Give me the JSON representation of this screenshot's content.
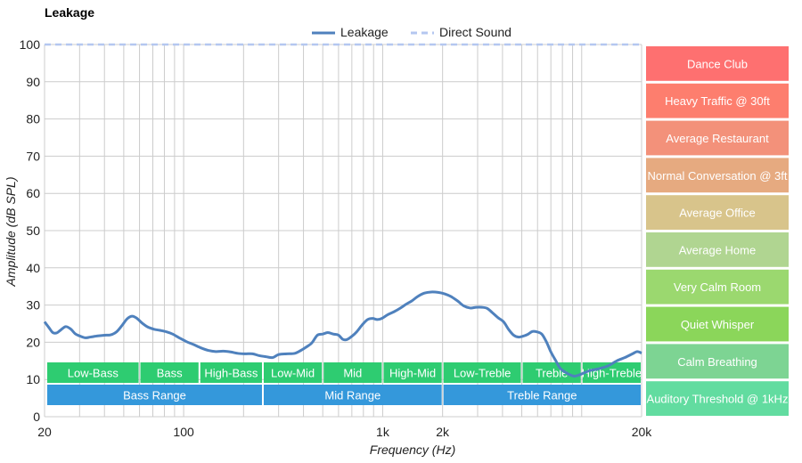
{
  "chart_data": {
    "type": "line",
    "title": "Leakage",
    "xlabel": "Frequency (Hz)",
    "ylabel": "Amplitude (dB SPL)",
    "x_scale": "log",
    "xlim": [
      20,
      20000
    ],
    "ylim": [
      0,
      100
    ],
    "grid": true,
    "legend_position": "top-center",
    "x_ticks": [
      {
        "value": 20,
        "label": "20"
      },
      {
        "value": 100,
        "label": "100"
      },
      {
        "value": 1000,
        "label": "1k"
      },
      {
        "value": 2000,
        "label": "2k"
      },
      {
        "value": 20000,
        "label": "20k"
      }
    ],
    "x_grid": [
      20,
      30,
      40,
      50,
      60,
      70,
      80,
      90,
      100,
      200,
      300,
      400,
      500,
      600,
      700,
      800,
      900,
      1000,
      2000,
      3000,
      4000,
      5000,
      6000,
      7000,
      8000,
      9000,
      10000,
      20000
    ],
    "y_ticks": [
      0,
      10,
      20,
      30,
      40,
      50,
      60,
      70,
      80,
      90,
      100
    ],
    "series": [
      {
        "name": "Leakage",
        "color": "#4f81bd",
        "style": "solid",
        "points": [
          [
            20,
            25.5
          ],
          [
            21,
            24
          ],
          [
            22,
            22.6
          ],
          [
            23,
            22.5
          ],
          [
            24,
            23.2
          ],
          [
            25.5,
            24.2
          ],
          [
            27,
            23.6
          ],
          [
            28.5,
            22.3
          ],
          [
            30,
            21.7
          ],
          [
            32,
            21.2
          ],
          [
            34,
            21.4
          ],
          [
            37,
            21.7
          ],
          [
            40,
            21.9
          ],
          [
            43,
            22
          ],
          [
            46,
            22.8
          ],
          [
            49,
            24.5
          ],
          [
            52,
            26.3
          ],
          [
            55,
            27
          ],
          [
            58,
            26.5
          ],
          [
            62,
            25.1
          ],
          [
            66,
            24.1
          ],
          [
            71,
            23.5
          ],
          [
            76,
            23.2
          ],
          [
            82,
            22.8
          ],
          [
            88,
            22.2
          ],
          [
            95,
            21.2
          ],
          [
            103,
            20.2
          ],
          [
            112,
            19.4
          ],
          [
            122,
            18.5
          ],
          [
            133,
            17.8
          ],
          [
            145,
            17.5
          ],
          [
            158,
            17.6
          ],
          [
            172,
            17.4
          ],
          [
            188,
            17.0
          ],
          [
            205,
            16.9
          ],
          [
            222,
            16.9
          ],
          [
            240,
            16.4
          ],
          [
            260,
            16.1
          ],
          [
            280,
            15.9
          ],
          [
            300,
            16.7
          ],
          [
            330,
            16.9
          ],
          [
            360,
            17.0
          ],
          [
            385,
            17.7
          ],
          [
            410,
            18.6
          ],
          [
            440,
            19.8
          ],
          [
            470,
            21.9
          ],
          [
            500,
            22.2
          ],
          [
            530,
            22.6
          ],
          [
            565,
            22.2
          ],
          [
            600,
            21.9
          ],
          [
            630,
            20.8
          ],
          [
            660,
            20.7
          ],
          [
            700,
            21.6
          ],
          [
            740,
            22.8
          ],
          [
            790,
            24.7
          ],
          [
            840,
            26.1
          ],
          [
            890,
            26.4
          ],
          [
            940,
            26.1
          ],
          [
            990,
            26.4
          ],
          [
            1060,
            27.4
          ],
          [
            1140,
            28.2
          ],
          [
            1220,
            29.1
          ],
          [
            1310,
            30.2
          ],
          [
            1400,
            31.1
          ],
          [
            1500,
            32.3
          ],
          [
            1620,
            33.2
          ],
          [
            1750,
            33.5
          ],
          [
            1900,
            33.4
          ],
          [
            2050,
            33.0
          ],
          [
            2200,
            32.3
          ],
          [
            2380,
            31.1
          ],
          [
            2550,
            29.8
          ],
          [
            2750,
            29.2
          ],
          [
            2950,
            29.4
          ],
          [
            3150,
            29.4
          ],
          [
            3350,
            29.1
          ],
          [
            3550,
            28.0
          ],
          [
            3800,
            26.6
          ],
          [
            4050,
            25.5
          ],
          [
            4300,
            23.4
          ],
          [
            4550,
            21.9
          ],
          [
            4800,
            21.4
          ],
          [
            5050,
            21.6
          ],
          [
            5350,
            22.1
          ],
          [
            5650,
            22.9
          ],
          [
            5950,
            22.8
          ],
          [
            6300,
            22.2
          ],
          [
            6650,
            20.1
          ],
          [
            7000,
            17.4
          ],
          [
            7400,
            15.1
          ],
          [
            7800,
            13.0
          ],
          [
            8250,
            12.0
          ],
          [
            8700,
            11.3
          ],
          [
            9200,
            10.9
          ],
          [
            9700,
            11.2
          ],
          [
            10300,
            11.8
          ],
          [
            11000,
            12.4
          ],
          [
            12000,
            12.8
          ],
          [
            13500,
            13.6
          ],
          [
            15000,
            15.0
          ],
          [
            16500,
            15.9
          ],
          [
            18000,
            16.9
          ],
          [
            19000,
            17.5
          ],
          [
            20000,
            17.1
          ]
        ]
      },
      {
        "name": "Direct Sound",
        "color": "#b4c7f0",
        "style": "dashed",
        "points": [
          [
            20,
            100
          ],
          [
            20000,
            100
          ]
        ]
      }
    ],
    "frequency_bands": [
      {
        "label": "Low-Bass",
        "from": 20,
        "to": 60,
        "row": 1,
        "color": "#2ecc71"
      },
      {
        "label": "Bass",
        "from": 60,
        "to": 120,
        "row": 1,
        "color": "#2ecc71"
      },
      {
        "label": "High-Bass",
        "from": 120,
        "to": 250,
        "row": 1,
        "color": "#2ecc71"
      },
      {
        "label": "Low-Mid",
        "from": 250,
        "to": 500,
        "row": 1,
        "color": "#2ecc71"
      },
      {
        "label": "Mid",
        "from": 500,
        "to": 1000,
        "row": 1,
        "color": "#2ecc71"
      },
      {
        "label": "High-Mid",
        "from": 1000,
        "to": 2000,
        "row": 1,
        "color": "#2ecc71"
      },
      {
        "label": "Low-Treble",
        "from": 2000,
        "to": 5000,
        "row": 1,
        "color": "#2ecc71"
      },
      {
        "label": "Treble",
        "from": 5000,
        "to": 10000,
        "row": 1,
        "color": "#2ecc71"
      },
      {
        "label": "High-Treble",
        "from": 10000,
        "to": 20000,
        "row": 1,
        "color": "#2ecc71"
      },
      {
        "label": "Bass Range",
        "from": 20,
        "to": 250,
        "row": 2,
        "color": "#3498db"
      },
      {
        "label": "Mid Range",
        "from": 250,
        "to": 2000,
        "row": 2,
        "color": "#3498db"
      },
      {
        "label": "Treble Range",
        "from": 2000,
        "to": 20000,
        "row": 2,
        "color": "#3498db"
      }
    ],
    "reference_levels": [
      {
        "label": "Dance Club",
        "from": 90,
        "to": 100,
        "color": "#fe7070"
      },
      {
        "label": "Heavy Traffic @ 30ft",
        "from": 80,
        "to": 90,
        "color": "#fd7e6e"
      },
      {
        "label": "Average Restaurant",
        "from": 70,
        "to": 80,
        "color": "#f3917a"
      },
      {
        "label": "Normal Conversation @ 3ft",
        "from": 60,
        "to": 70,
        "color": "#e6aa80"
      },
      {
        "label": "Average Office",
        "from": 50,
        "to": 60,
        "color": "#d8c48b"
      },
      {
        "label": "Average Home",
        "from": 40,
        "to": 50,
        "color": "#b0d591"
      },
      {
        "label": "Very Calm Room",
        "from": 30,
        "to": 40,
        "color": "#9bd86f"
      },
      {
        "label": "Quiet Whisper",
        "from": 20,
        "to": 30,
        "color": "#8bd65a"
      },
      {
        "label": "Calm Breathing",
        "from": 10,
        "to": 20,
        "color": "#7dd493"
      },
      {
        "label": "Auditory Threshold @ 1kHz",
        "from": 0,
        "to": 10,
        "color": "#62dca0"
      }
    ]
  }
}
